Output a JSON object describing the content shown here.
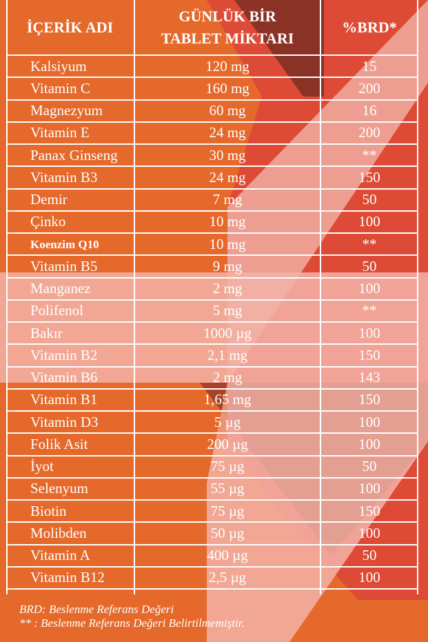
{
  "table": {
    "headers": {
      "name": "İÇERİK ADI",
      "amount_line1": "GÜNLÜK BİR",
      "amount_line2": "TABLET MİKTARI",
      "brd": "%BRD*"
    },
    "rows": [
      {
        "name": "Kalsiyum",
        "amount": "120 mg",
        "brd": "15"
      },
      {
        "name": "Vitamin C",
        "amount": "160 mg",
        "brd": "200"
      },
      {
        "name": "Magnezyum",
        "amount": "60 mg",
        "brd": "16"
      },
      {
        "name": "Vitamin E",
        "amount": "24 mg",
        "brd": "200"
      },
      {
        "name": "Panax Ginseng",
        "amount": "30 mg",
        "brd": "**"
      },
      {
        "name": "Vitamin B3",
        "amount": "24 mg",
        "brd": "150"
      },
      {
        "name": "Demir",
        "amount": "7 mg",
        "brd": "50"
      },
      {
        "name": "Çinko",
        "amount": "10 mg",
        "brd": "100"
      },
      {
        "name": "Koenzim Q10",
        "amount": "10 mg",
        "brd": "**"
      },
      {
        "name": "Vitamin B5",
        "amount": "9 mg",
        "brd": "50"
      },
      {
        "name": "Manganez",
        "amount": "2 mg",
        "brd": "100"
      },
      {
        "name": "Polifenol",
        "amount": "5 mg",
        "brd": "**"
      },
      {
        "name": "Bakır",
        "amount": "1000 µg",
        "brd": "100"
      },
      {
        "name": "Vitamin B2",
        "amount": "2,1 mg",
        "brd": "150"
      },
      {
        "name": "Vitamin B6",
        "amount": "2 mg",
        "brd": "143"
      },
      {
        "name": "Vitamin B1",
        "amount": "1,65 mg",
        "brd": "150"
      },
      {
        "name": "Vitamin D3",
        "amount": "5 µg",
        "brd": "100"
      },
      {
        "name": "Folik Asit",
        "amount": "200 µg",
        "brd": "100"
      },
      {
        "name": "İyot",
        "amount": "75 µg",
        "brd": "50"
      },
      {
        "name": "Selenyum",
        "amount": "55 µg",
        "brd": "100"
      },
      {
        "name": "Biotin",
        "amount": "75 µg",
        "brd": "150"
      },
      {
        "name": "Molibden",
        "amount": "50 µg",
        "brd": "100"
      },
      {
        "name": "Vitamin A",
        "amount": "400 µg",
        "brd": "50"
      },
      {
        "name": "Vitamin B12",
        "amount": "2,5 µg",
        "brd": "100"
      }
    ]
  },
  "footnotes": {
    "brd": "BRD: Beslenme Referans Değeri",
    "stars": "**   : Beslenme Referans Değeri Belirtilmemiştir."
  },
  "colors": {
    "orange": "#e4692b",
    "red": "#dd4a35",
    "dark_red": "#8b3226",
    "pink": "#f3b3a7",
    "line": "#ffffff"
  }
}
